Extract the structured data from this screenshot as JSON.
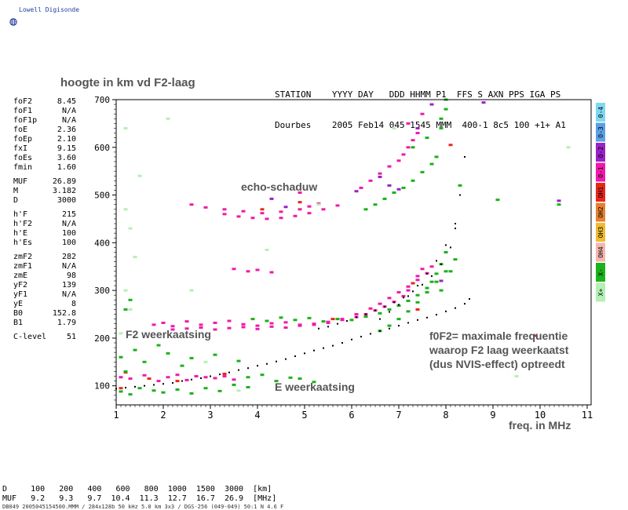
{
  "brand": {
    "label": "Lowell Digisonde",
    "logo_icon": "globe-icon"
  },
  "chart_title": "hoogte in km vd F2-laag",
  "station": {
    "header_row": [
      "STATION",
      "YYYY DAY",
      "DDD HHMM P1",
      "FFS S AXN PPS IGA PS"
    ],
    "value_row": [
      "Dourbes",
      "2005 Feb14",
      "045 1545 MMM",
      "400-1 8c5 100 +1+ A1"
    ]
  },
  "parameters": [
    [
      [
        "foF2",
        "8.45"
      ],
      [
        "foF1",
        "N/A"
      ],
      [
        "foF1p",
        "N/A"
      ],
      [
        "foE",
        "2.36"
      ],
      [
        "foEp",
        "2.10"
      ],
      [
        "fxI",
        "9.15"
      ],
      [
        "foEs",
        "3.60"
      ],
      [
        "fmin",
        "1.60"
      ]
    ],
    [
      [
        "MUF",
        "26.89"
      ],
      [
        "M",
        "3.182"
      ],
      [
        "D",
        "3000"
      ]
    ],
    [
      [
        "h'F",
        "215"
      ],
      [
        "h'F2",
        "N/A"
      ],
      [
        "h'E",
        "100"
      ],
      [
        "h'Es",
        "100"
      ]
    ],
    [
      [
        "zmF2",
        "282"
      ],
      [
        "zmF1",
        "N/A"
      ],
      [
        "zmE",
        "98"
      ],
      [
        "yF2",
        "139"
      ],
      [
        "yF1",
        "N/A"
      ],
      [
        "yE",
        "8"
      ],
      [
        "B0",
        "152.8"
      ],
      [
        "B1",
        "1.79"
      ]
    ],
    [
      [
        "C-level",
        "51"
      ]
    ]
  ],
  "legend_items": [
    {
      "label": "0-4",
      "color": "#7fd7f0"
    },
    {
      "label": "O-3",
      "color": "#5aa0e6"
    },
    {
      "label": "O-2",
      "color": "#9a22c8"
    },
    {
      "label": "O-1",
      "color": "#f01aa9"
    },
    {
      "label": "OH1",
      "color": "#e8271a"
    },
    {
      "label": "OH2",
      "color": "#e88030"
    },
    {
      "label": "OH3",
      "color": "#f0bb30"
    },
    {
      "label": "OH4",
      "color": "#f5b5b0"
    },
    {
      "label": "X-",
      "color": "#1bb21b"
    },
    {
      "label": "X+",
      "color": "#b4f0b4"
    }
  ],
  "annotations": {
    "echo": "echo-schaduw",
    "f2": "F2 weerkaatsing",
    "e": "E weerkaatsing",
    "fof2_line1": "f0F2= maximale frequentie",
    "fof2_line2": "waarop F2 laag weerkaatst",
    "fof2_line3": "(dus NVIS-effect) optreedt",
    "xaxis": "freq. in MHz"
  },
  "bottom_table": {
    "row1": "D     100   200   400   600   800  1000  1500  3000  [km]",
    "row2": "MUF   9.2   9.3   9.7  10.4  11.3  12.7  16.7  26.9  [MHz]"
  },
  "footer": "DB049 2005045154500.MMM / 284x128b 50 kHz 5.0 km 3x3 / DGS-256 (049-049) 50:1 N 4.6 F",
  "chart_data": {
    "type": "scatter",
    "title": "hoogte in km vd F2-laag",
    "xlabel": "freq. in MHz",
    "ylabel": "",
    "xlim": [
      1,
      11
    ],
    "ylim": [
      60,
      700
    ],
    "x_ticks": [
      1,
      2,
      3,
      4,
      5,
      6,
      7,
      8,
      9,
      10,
      11
    ],
    "y_ticks": [
      100,
      200,
      300,
      400,
      500,
      600,
      700
    ],
    "grid": false,
    "series": [
      {
        "name": "O-1",
        "color": "#f01aa9",
        "x": [
          1.1,
          1.3,
          1.6,
          1.9,
          2.1,
          2.3,
          2.5,
          2.7,
          2.9,
          3.1,
          3.3,
          3.5,
          1.8,
          2.0,
          2.2,
          2.5,
          2.8,
          3.1,
          3.4,
          3.7,
          4.0,
          4.3,
          4.6,
          4.9,
          5.2,
          5.5,
          5.8,
          6.1,
          6.3,
          6.5,
          6.7,
          6.9,
          7.1,
          7.2,
          7.3,
          7.4,
          7.5,
          2.2,
          2.5,
          2.8,
          3.1,
          3.4,
          3.7,
          4.0,
          4.3,
          4.6,
          4.9,
          5.2,
          5.5,
          5.8,
          6.1,
          6.4,
          6.6,
          6.8,
          7.0,
          7.2,
          7.4,
          7.6,
          7.7,
          2.6,
          2.9,
          3.3,
          3.7,
          4.1,
          4.5,
          4.9,
          5.1,
          5.3,
          3.3,
          3.6,
          3.9,
          4.2,
          4.5,
          4.8,
          5.1,
          5.4,
          5.7,
          3.5,
          3.8,
          4.0,
          4.3,
          4.9,
          6.2,
          6.4,
          6.6,
          6.8,
          7.0,
          7.1,
          7.2,
          7.3,
          7.4,
          7.2,
          7.5
        ],
        "y": [
          118,
          115,
          122,
          110,
          118,
          123,
          112,
          120,
          118,
          116,
          120,
          113,
          228,
          232,
          225,
          235,
          228,
          232,
          236,
          229,
          226,
          231,
          233,
          228,
          230,
          234,
          238,
          244,
          250,
          258,
          266,
          276,
          288,
          300,
          315,
          330,
          345,
          218,
          220,
          222,
          218,
          221,
          223,
          219,
          224,
          222,
          226,
          228,
          232,
          240,
          250,
          262,
          272,
          284,
          296,
          308,
          322,
          336,
          350,
          480,
          474,
          470,
          466,
          462,
          465,
          470,
          476,
          482,
          460,
          455,
          452,
          450,
          452,
          456,
          462,
          470,
          478,
          345,
          340,
          343,
          338,
          505,
          515,
          530,
          545,
          560,
          572,
          585,
          600,
          615,
          630,
          650,
          670
        ]
      },
      {
        "name": "O-2",
        "color": "#9a22c8",
        "x": [
          4.3,
          4.6,
          6.6,
          6.8,
          7.0,
          7.4,
          7.7,
          8.8,
          10.4,
          6.1,
          7.9
        ],
        "y": [
          492,
          475,
          538,
          520,
          512,
          640,
          690,
          694,
          488,
          508,
          320
        ]
      },
      {
        "name": "OH1",
        "color": "#e8271a",
        "x": [
          1.2,
          1.7,
          2.3,
          3.3,
          4.1,
          5.6,
          7.4,
          8.1,
          4.9,
          7.3,
          1.1,
          9.9
        ],
        "y": [
          128,
          115,
          110,
          125,
          470,
          240,
          260,
          605,
          485,
          315,
          95,
          205
        ]
      },
      {
        "name": "X-",
        "color": "#1bb21b",
        "x": [
          1.1,
          1.3,
          1.5,
          1.8,
          2.0,
          2.3,
          2.6,
          2.9,
          3.2,
          3.5,
          3.8,
          4.1,
          4.4,
          4.7,
          3.9,
          4.2,
          4.5,
          4.8,
          5.1,
          5.4,
          5.7,
          6.0,
          6.3,
          6.6,
          6.8,
          7.0,
          7.2,
          7.4,
          7.6,
          7.7,
          7.8,
          7.9,
          8.0,
          6.6,
          6.8,
          7.0,
          7.2,
          7.4,
          7.6,
          7.8,
          8.0,
          8.2,
          6.3,
          6.5,
          6.7,
          6.9,
          7.1,
          7.3,
          7.5,
          7.7,
          7.3,
          7.6,
          7.9,
          7.9,
          8.0,
          8.0,
          7.9,
          8.1,
          1.1,
          1.6,
          2.1,
          2.6,
          3.1,
          3.6,
          1.2,
          1.4,
          1.9,
          2.4,
          3.8,
          4.9,
          5.2,
          10.4,
          9.1,
          8.3,
          1.2,
          1.3,
          7.8
        ],
        "y": [
          88,
          82,
          95,
          90,
          86,
          92,
          84,
          95,
          89,
          102,
          118,
          123,
          110,
          117,
          240,
          236,
          243,
          238,
          242,
          235,
          240,
          238,
          245,
          252,
          260,
          268,
          278,
          290,
          305,
          318,
          335,
          355,
          380,
          215,
          226,
          240,
          256,
          275,
          296,
          318,
          340,
          365,
          470,
          480,
          492,
          505,
          515,
          530,
          548,
          565,
          600,
          620,
          640,
          660,
          680,
          700,
          300,
          340,
          160,
          150,
          168,
          158,
          165,
          152,
          130,
          175,
          185,
          142,
          97,
          115,
          108,
          480,
          490,
          520,
          260,
          280,
          580
        ]
      },
      {
        "name": "X+",
        "color": "#b4f0b4",
        "x": [
          1.2,
          1.3,
          1.5,
          1.2,
          1.4,
          2.1,
          2.9,
          3.6,
          4.2,
          5.3,
          6.9,
          1.3,
          1.1,
          10.6,
          9.5,
          2.6,
          1.2
        ],
        "y": [
          470,
          430,
          540,
          300,
          370,
          660,
          150,
          90,
          385,
          480,
          640,
          260,
          210,
          600,
          120,
          300,
          640
        ]
      },
      {
        "name": "trace",
        "color": "#000000",
        "x": [
          1.0,
          1.2,
          1.4,
          1.6,
          1.8,
          2.0,
          2.2,
          2.4,
          2.6,
          2.8,
          3.0,
          3.2,
          3.4,
          3.6,
          3.8,
          4.0,
          4.2,
          4.4,
          4.6,
          4.8,
          5.0,
          5.2,
          5.4,
          5.6,
          5.8,
          6.0,
          6.2,
          6.4,
          6.6,
          6.8,
          7.0,
          7.2,
          7.4,
          7.6,
          7.8,
          8.0,
          8.2,
          8.4,
          8.5,
          5.3,
          5.5,
          5.7,
          5.9,
          6.1,
          6.3,
          6.5,
          6.7,
          6.9,
          7.1,
          7.3,
          7.5,
          7.7,
          7.9,
          8.1,
          8.2,
          8.3,
          8.4,
          6.6,
          6.8,
          7.0,
          7.2,
          7.4,
          7.6,
          7.8,
          8.0,
          8.2
        ],
        "y": [
          94,
          96,
          98,
          100,
          102,
          104,
          106,
          110,
          113,
          116,
          120,
          124,
          128,
          133,
          137,
          142,
          146,
          151,
          156,
          162,
          168,
          174,
          179,
          184,
          190,
          197,
          203,
          209,
          215,
          220,
          226,
          232,
          238,
          243,
          249,
          256,
          263,
          272,
          282,
          220,
          224,
          230,
          236,
          244,
          250,
          258,
          266,
          275,
          285,
          298,
          312,
          330,
          355,
          390,
          440,
          500,
          580,
          240,
          255,
          270,
          288,
          310,
          335,
          362,
          395,
          430
        ]
      }
    ]
  }
}
